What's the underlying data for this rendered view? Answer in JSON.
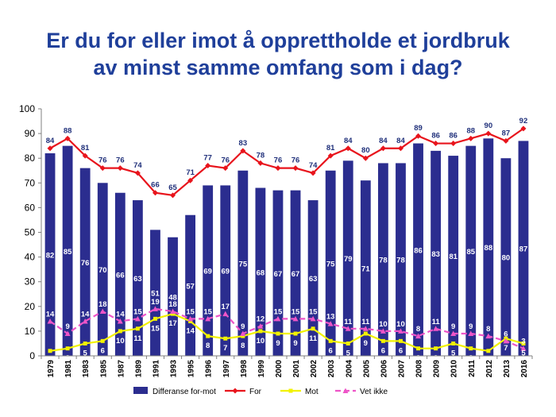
{
  "title": {
    "line1": "Er du for eller imot å opprettholde et jordbruk",
    "line2": "av minst samme omfang som i dag?"
  },
  "chart_data": {
    "type": "bar",
    "categories": [
      "1979",
      "1981",
      "1983",
      "1985",
      "1987",
      "1989",
      "1991",
      "1993",
      "1995",
      "1996",
      "1997",
      "1998",
      "1999",
      "2000",
      "2001",
      "2002",
      "2003",
      "2004",
      "2005",
      "2006",
      "2007",
      "2008",
      "2009",
      "2010",
      "2011",
      "2012",
      "2013",
      "2016"
    ],
    "ylim": [
      0,
      100
    ],
    "yticks": [
      0,
      10,
      20,
      30,
      40,
      50,
      60,
      70,
      80,
      90,
      100
    ],
    "legend_position": "bottom",
    "grid": false,
    "series": [
      {
        "name": "Differanse for-mot",
        "type": "bar",
        "color": "#2b2d8f",
        "values": [
          82,
          85,
          76,
          70,
          66,
          63,
          51,
          48,
          57,
          69,
          69,
          75,
          68,
          67,
          67,
          63,
          75,
          79,
          71,
          78,
          78,
          86,
          83,
          81,
          85,
          88,
          80,
          87
        ]
      },
      {
        "name": "For",
        "type": "line",
        "color": "#e8141c",
        "values": [
          84,
          88,
          81,
          76,
          76,
          74,
          66,
          65,
          71,
          77,
          76,
          83,
          78,
          76,
          76,
          74,
          81,
          84,
          80,
          84,
          84,
          89,
          86,
          86,
          88,
          90,
          87,
          92
        ]
      },
      {
        "name": "Mot",
        "type": "line",
        "color": "#f2f200",
        "values": [
          2,
          3,
          5,
          6,
          10,
          11,
          15,
          17,
          14,
          8,
          7,
          8,
          10,
          9,
          9,
          11,
          6,
          5,
          9,
          6,
          6,
          3,
          3,
          5,
          3,
          2,
          7,
          5
        ]
      },
      {
        "name": "Vet ikke",
        "type": "line",
        "color": "#ee55c8",
        "values": [
          14,
          9,
          14,
          18,
          14,
          15,
          19,
          18,
          15,
          15,
          17,
          9,
          12,
          15,
          15,
          15,
          13,
          11,
          11,
          10,
          10,
          8,
          11,
          9,
          9,
          8,
          6,
          3
        ]
      }
    ]
  }
}
